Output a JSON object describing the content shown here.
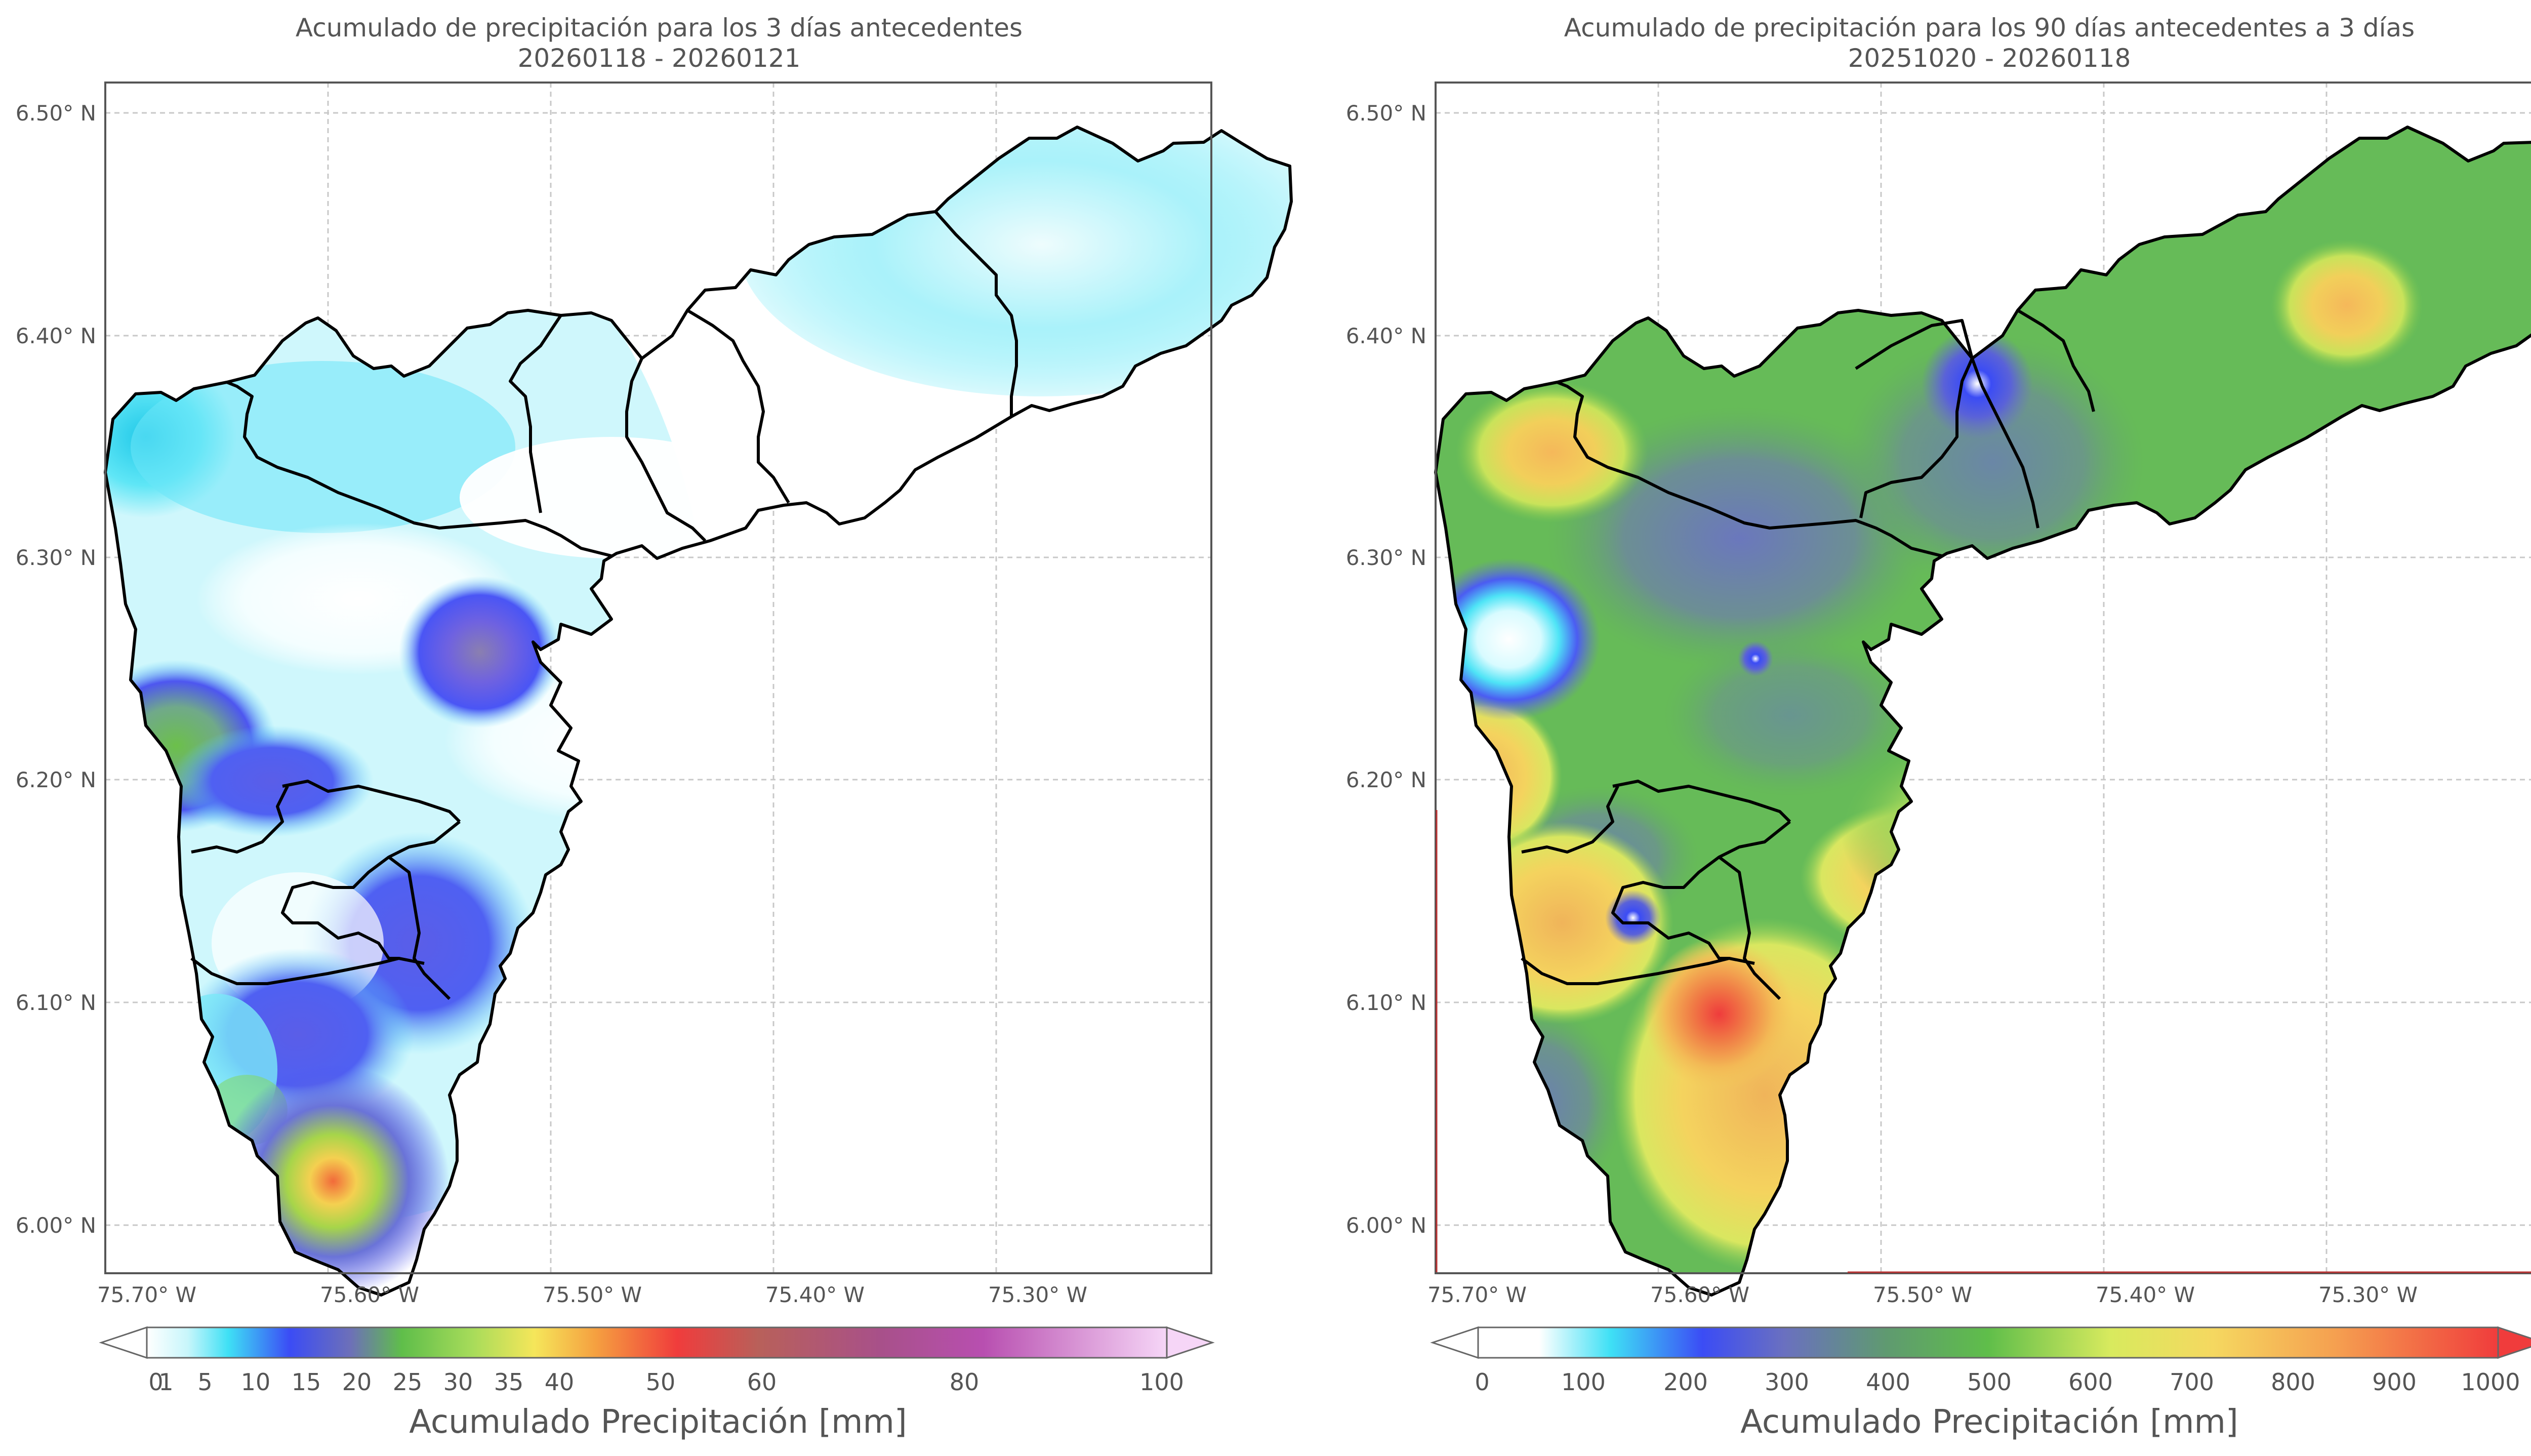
{
  "panels": [
    {
      "title_line1": "Acumulado de precipitación para los 3 días antecedentes",
      "title_line2": "20260118 - 20260121",
      "lat_ticks": [
        "6.50° N",
        "6.40° N",
        "6.30° N",
        "6.20° N",
        "6.10° N",
        "6.00° N"
      ],
      "lon_ticks": [
        "75.70° W",
        "75.60° W",
        "75.50° W",
        "75.40° W",
        "75.30° W"
      ],
      "colorbar": {
        "ticks": [
          "0",
          "1",
          "5",
          "10",
          "15",
          "20",
          "25",
          "30",
          "35",
          "40",
          "50",
          "60",
          "80",
          "100"
        ],
        "label": "Acumulado Precipitación [mm]"
      }
    },
    {
      "title_line1": "Acumulado de precipitación para los 90 días antecedentes a 3 días",
      "title_line2": "20251020 - 20260118",
      "lat_ticks": [
        "6.50° N",
        "6.40° N",
        "6.30° N",
        "6.20° N",
        "6.10° N",
        "6.00° N"
      ],
      "lon_ticks": [
        "75.70° W",
        "75.60° W",
        "75.50° W",
        "75.40° W",
        "75.30° W"
      ],
      "colorbar": {
        "ticks": [
          "0",
          "100",
          "200",
          "300",
          "400",
          "500",
          "600",
          "700",
          "800",
          "900",
          "1000"
        ],
        "label": "Acumulado Precipitación [mm]"
      }
    }
  ],
  "colors": {
    "cyan": "#3ee0f5",
    "blue": "#3b4cf5",
    "green": "#5fbe4a",
    "yellow": "#f5e65a",
    "orange": "#f5a040",
    "red": "#f03c3c",
    "purple": "#b84fb0",
    "pink": "#f6d6f7"
  }
}
